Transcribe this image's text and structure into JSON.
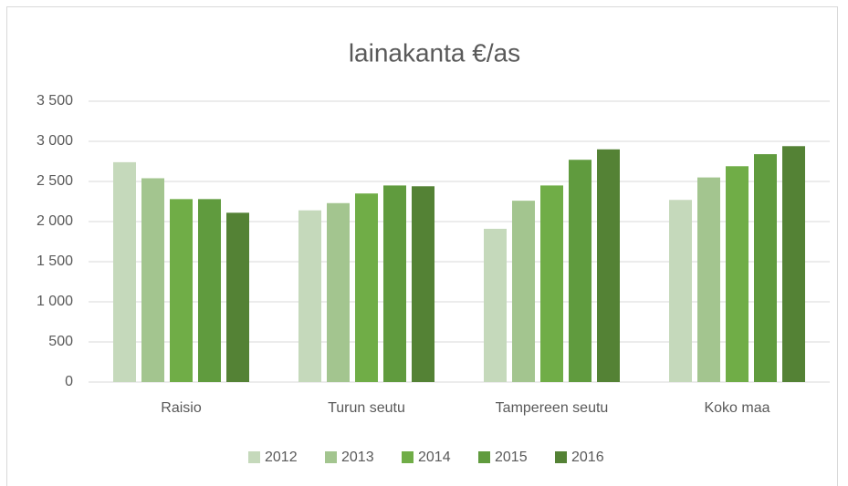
{
  "chart_data": {
    "type": "bar",
    "title": "lainakanta €/as",
    "categories": [
      "Raisio",
      "Turun seutu",
      "Tampereen seutu",
      "Koko maa"
    ],
    "series": [
      {
        "name": "2012",
        "color": "#c5d9bb",
        "values": [
          2740,
          2140,
          1910,
          2270
        ]
      },
      {
        "name": "2013",
        "color": "#a3c58f",
        "values": [
          2540,
          2230,
          2260,
          2550
        ]
      },
      {
        "name": "2014",
        "color": "#70ad47",
        "values": [
          2280,
          2350,
          2450,
          2690
        ]
      },
      {
        "name": "2015",
        "color": "#609b3e",
        "values": [
          2280,
          2450,
          2770,
          2840
        ]
      },
      {
        "name": "2016",
        "color": "#548235",
        "values": [
          2110,
          2440,
          2900,
          2940
        ]
      }
    ],
    "ylim": [
      0,
      3500
    ],
    "yticks": [
      0,
      500,
      {
        "value": 1000,
        "label": "1 000"
      },
      {
        "value": 1500,
        "label": "1 500"
      },
      {
        "value": 2000,
        "label": "2 000"
      },
      {
        "value": 2500,
        "label": "2 500"
      },
      {
        "value": 3000,
        "label": "3 000"
      },
      {
        "value": 3500,
        "label": "3 500"
      }
    ],
    "grid": true,
    "legend": "bottom"
  }
}
